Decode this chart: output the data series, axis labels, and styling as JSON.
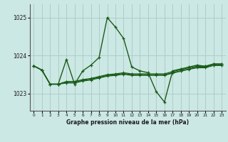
{
  "title": "Graphe pression niveau de la mer (hPa)",
  "background_color": "#cce8e4",
  "grid_color": "#b0ccc8",
  "line_color": "#1a5c1a",
  "xlim": [
    -0.5,
    23.5
  ],
  "ylim": [
    1022.55,
    1025.35
  ],
  "yticks": [
    1023,
    1024,
    1025
  ],
  "xticks": [
    0,
    1,
    2,
    3,
    4,
    5,
    6,
    7,
    8,
    9,
    10,
    11,
    12,
    13,
    14,
    15,
    16,
    17,
    18,
    19,
    20,
    21,
    22,
    23
  ],
  "series": [
    [
      1023.73,
      1023.62,
      1023.25,
      1023.25,
      1023.9,
      1023.25,
      1023.6,
      1023.75,
      1023.95,
      1025.0,
      1024.75,
      1024.45,
      1023.7,
      1023.6,
      1023.55,
      1023.05,
      1022.78,
      1023.6,
      1023.65,
      1023.7,
      1023.75,
      1023.72,
      1023.78,
      1023.78
    ],
    [
      1023.73,
      1023.62,
      1023.25,
      1023.25,
      1023.3,
      1023.3,
      1023.35,
      1023.38,
      1023.43,
      1023.48,
      1023.5,
      1023.53,
      1023.5,
      1023.5,
      1023.5,
      1023.5,
      1023.5,
      1023.55,
      1023.6,
      1023.65,
      1023.7,
      1023.7,
      1023.75,
      1023.75
    ],
    [
      1023.73,
      1023.62,
      1023.25,
      1023.25,
      1023.32,
      1023.32,
      1023.37,
      1023.4,
      1023.45,
      1023.5,
      1023.52,
      1023.55,
      1023.52,
      1023.52,
      1023.52,
      1023.52,
      1023.52,
      1023.58,
      1023.63,
      1023.68,
      1023.72,
      1023.72,
      1023.78,
      1023.78
    ],
    [
      1023.73,
      1023.62,
      1023.25,
      1023.25,
      1023.28,
      1023.28,
      1023.33,
      1023.36,
      1023.41,
      1023.46,
      1023.48,
      1023.51,
      1023.48,
      1023.48,
      1023.48,
      1023.48,
      1023.48,
      1023.54,
      1023.59,
      1023.64,
      1023.68,
      1023.68,
      1023.74,
      1023.74
    ]
  ]
}
